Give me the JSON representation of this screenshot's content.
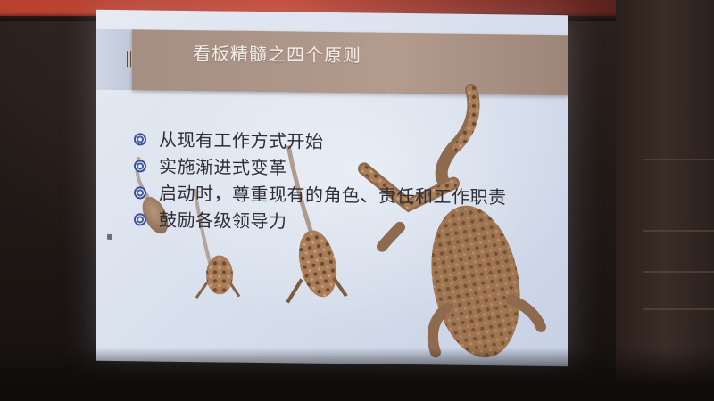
{
  "banner": {
    "color": "#c44a36"
  },
  "slide": {
    "title": "看板精髓之四个原则",
    "bullets": [
      "从现有工作方式开始",
      "实施渐进式变革",
      "启动时，尊重现有的角色、责任和工作职责",
      "鼓励各级领导力"
    ],
    "bullet_icon": "spiral-bullet-icon",
    "background_color": "#dde3ef",
    "title_bar_color": "#a8928a"
  }
}
